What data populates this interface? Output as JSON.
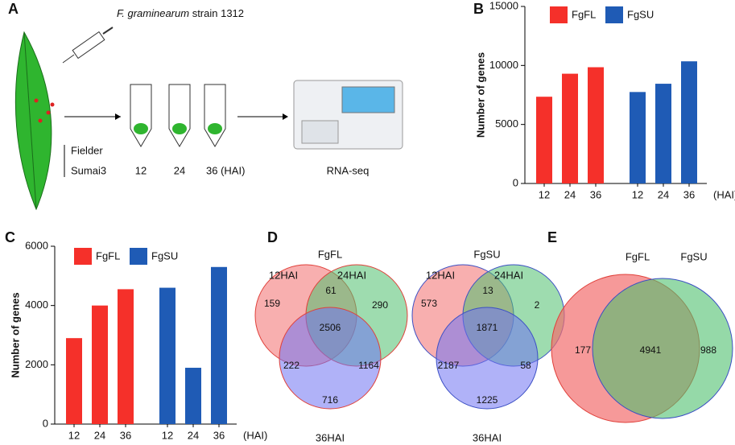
{
  "panel_labels": [
    "A",
    "B",
    "C",
    "D",
    "E"
  ],
  "panel_a": {
    "species": "F. graminearum",
    "strain": "strain 1312",
    "cultivars": [
      "Fielder",
      "Sumai3"
    ],
    "timepoints": [
      "12",
      "24",
      "36 (HAI)"
    ],
    "output": "RNA-seq"
  },
  "chart_data": [
    {
      "type": "bar",
      "ylabel": "Number of genes",
      "xlabel": "(HAI)",
      "categories": [
        "12",
        "24",
        "36",
        "12",
        "24",
        "36"
      ],
      "series": [
        {
          "name": "FgFL",
          "color": "#f5302a",
          "values": [
            7350,
            9300,
            9850,
            null,
            null,
            null
          ]
        },
        {
          "name": "FgSU",
          "color": "#1f5bb5",
          "values": [
            null,
            null,
            null,
            7750,
            8450,
            10350
          ]
        }
      ],
      "ylim": [
        0,
        15000
      ],
      "yticks": [
        0,
        5000,
        10000,
        15000
      ]
    },
    {
      "type": "bar",
      "ylabel": "Number of genes",
      "xlabel": "(HAI)",
      "categories": [
        "12",
        "24",
        "36",
        "12",
        "24",
        "36"
      ],
      "series": [
        {
          "name": "FgFL",
          "color": "#f5302a",
          "values": [
            2900,
            4000,
            4550,
            null,
            null,
            null
          ]
        },
        {
          "name": "FgSU",
          "color": "#1f5bb5",
          "values": [
            null,
            null,
            null,
            4600,
            1900,
            5300
          ]
        }
      ],
      "ylim": [
        0,
        6000
      ],
      "yticks": [
        0,
        2000,
        4000,
        6000
      ]
    }
  ],
  "venn_d": [
    {
      "title": "FgFL",
      "sets": [
        "12HAI",
        "24HAI",
        "36HAI"
      ],
      "regions": {
        "a": 159,
        "ab": 61,
        "b": 290,
        "abc": 2506,
        "ac": 222,
        "bc": 1164,
        "c": 716
      }
    },
    {
      "title": "FgSU",
      "sets": [
        "12HAI",
        "24HAI",
        "36HAI"
      ],
      "regions": {
        "a": 573,
        "ab": 13,
        "b": 2,
        "abc": 1871,
        "ac": 2187,
        "bc": 58,
        "c": 1225
      }
    }
  ],
  "venn_e": {
    "sets": [
      "FgFL",
      "FgSU"
    ],
    "regions": {
      "a": 177,
      "ab": 4941,
      "b": 988
    }
  }
}
